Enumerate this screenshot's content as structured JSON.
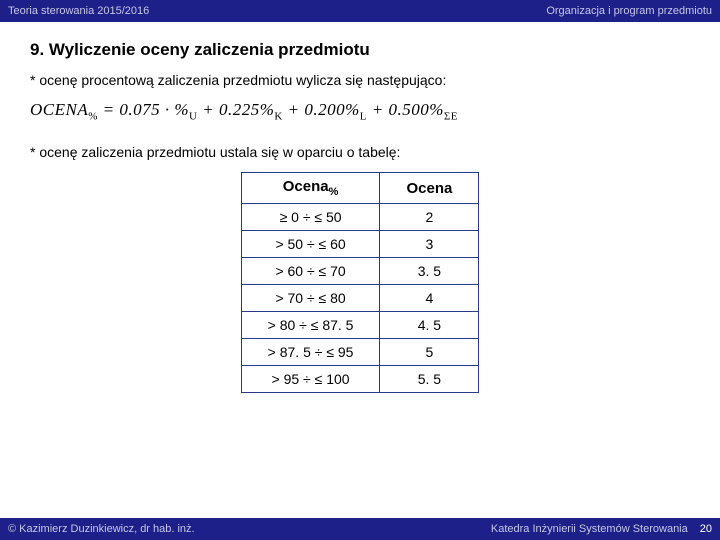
{
  "header": {
    "left": "Teoria sterowania  2015/2016",
    "right": "Organizacja i program przedmiotu"
  },
  "title": "9. Wyliczenie oceny zaliczenia przedmiotu",
  "line1": "* ocenę procentową zaliczenia przedmiotu wylicza się następująco:",
  "formula": {
    "lhs": "OCENA",
    "lhs_sub": "%",
    "rhs": " = 0.075 · %",
    "t1_sub": "U",
    "p2": " + 0.225%",
    "t2_sub": "K",
    "p3": " + 0.200%",
    "t3_sub": "L",
    "p4": " + 0.500%",
    "t4_sub": "ΣE"
  },
  "line2": "* ocenę zaliczenia przedmiotu ustala się w oparciu o tabelę:",
  "table": {
    "columns": [
      "Ocena%",
      "Ocena"
    ],
    "col1_label": "Ocena",
    "col1_sub": "%",
    "col2_label": "Ocena",
    "rows": [
      [
        "≥ 0 ÷ ≤ 50",
        "2"
      ],
      [
        "> 50 ÷ ≤ 60",
        "3"
      ],
      [
        "> 60 ÷ ≤ 70",
        "3. 5"
      ],
      [
        "> 70 ÷ ≤ 80",
        "4"
      ],
      [
        "> 80 ÷ ≤ 87. 5",
        "4. 5"
      ],
      [
        "> 87. 5 ÷ ≤ 95",
        "5"
      ],
      [
        "> 95 ÷ ≤ 100",
        "5. 5"
      ]
    ]
  },
  "footer": {
    "left": "© Kazimierz Duzinkiewicz, dr hab. inż.",
    "right": "Katedra Inżynierii Systemów Sterowania",
    "page": "20"
  },
  "colors": {
    "header_bg": "#1d2088",
    "header_text": "#c5c6e8",
    "border": "#2a3a8a",
    "background": "#ffffff"
  }
}
